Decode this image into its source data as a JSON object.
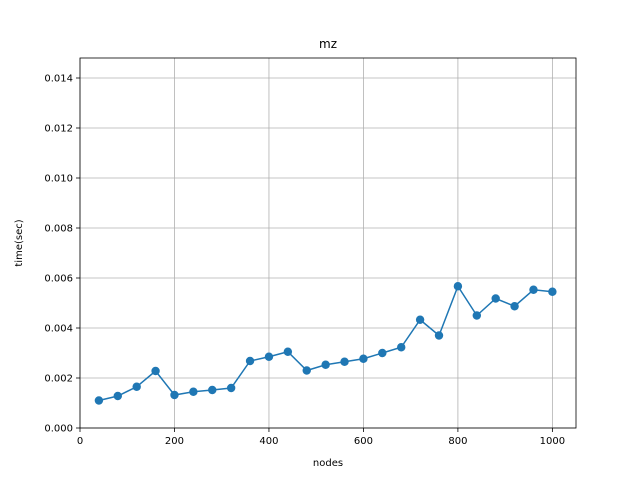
{
  "chart_data": {
    "type": "line",
    "title": "mz",
    "xlabel": "nodes",
    "ylabel": "time(sec)",
    "xlim": [
      0,
      1050
    ],
    "ylim": [
      0,
      0.0148
    ],
    "grid": true,
    "markers": true,
    "color": "#1f77b4",
    "x_ticks": [
      0,
      200,
      400,
      600,
      800,
      1000
    ],
    "x_tick_labels": [
      "0",
      "200",
      "400",
      "600",
      "800",
      "1000"
    ],
    "y_ticks": [
      0.0,
      0.002,
      0.004,
      0.006,
      0.008,
      0.01,
      0.012,
      0.014
    ],
    "y_tick_labels": [
      "0.000",
      "0.002",
      "0.004",
      "0.006",
      "0.008",
      "0.010",
      "0.012",
      "0.014"
    ],
    "series": [
      {
        "x": [
          40,
          80,
          120,
          160,
          200,
          240,
          280,
          320,
          360,
          400,
          440,
          480,
          520,
          560,
          600,
          640,
          680,
          720,
          760,
          800,
          840,
          880,
          920,
          960,
          1000
        ],
        "y": [
          0.0011,
          0.00128,
          0.00165,
          0.00228,
          0.00132,
          0.00145,
          0.00152,
          0.0016,
          0.00268,
          0.00285,
          0.00305,
          0.0023,
          0.00253,
          0.00265,
          0.00277,
          0.003,
          0.00323,
          0.00433,
          0.0037,
          0.00567,
          0.0045,
          0.00518,
          0.00487,
          0.00553,
          0.00545
        ]
      }
    ]
  }
}
